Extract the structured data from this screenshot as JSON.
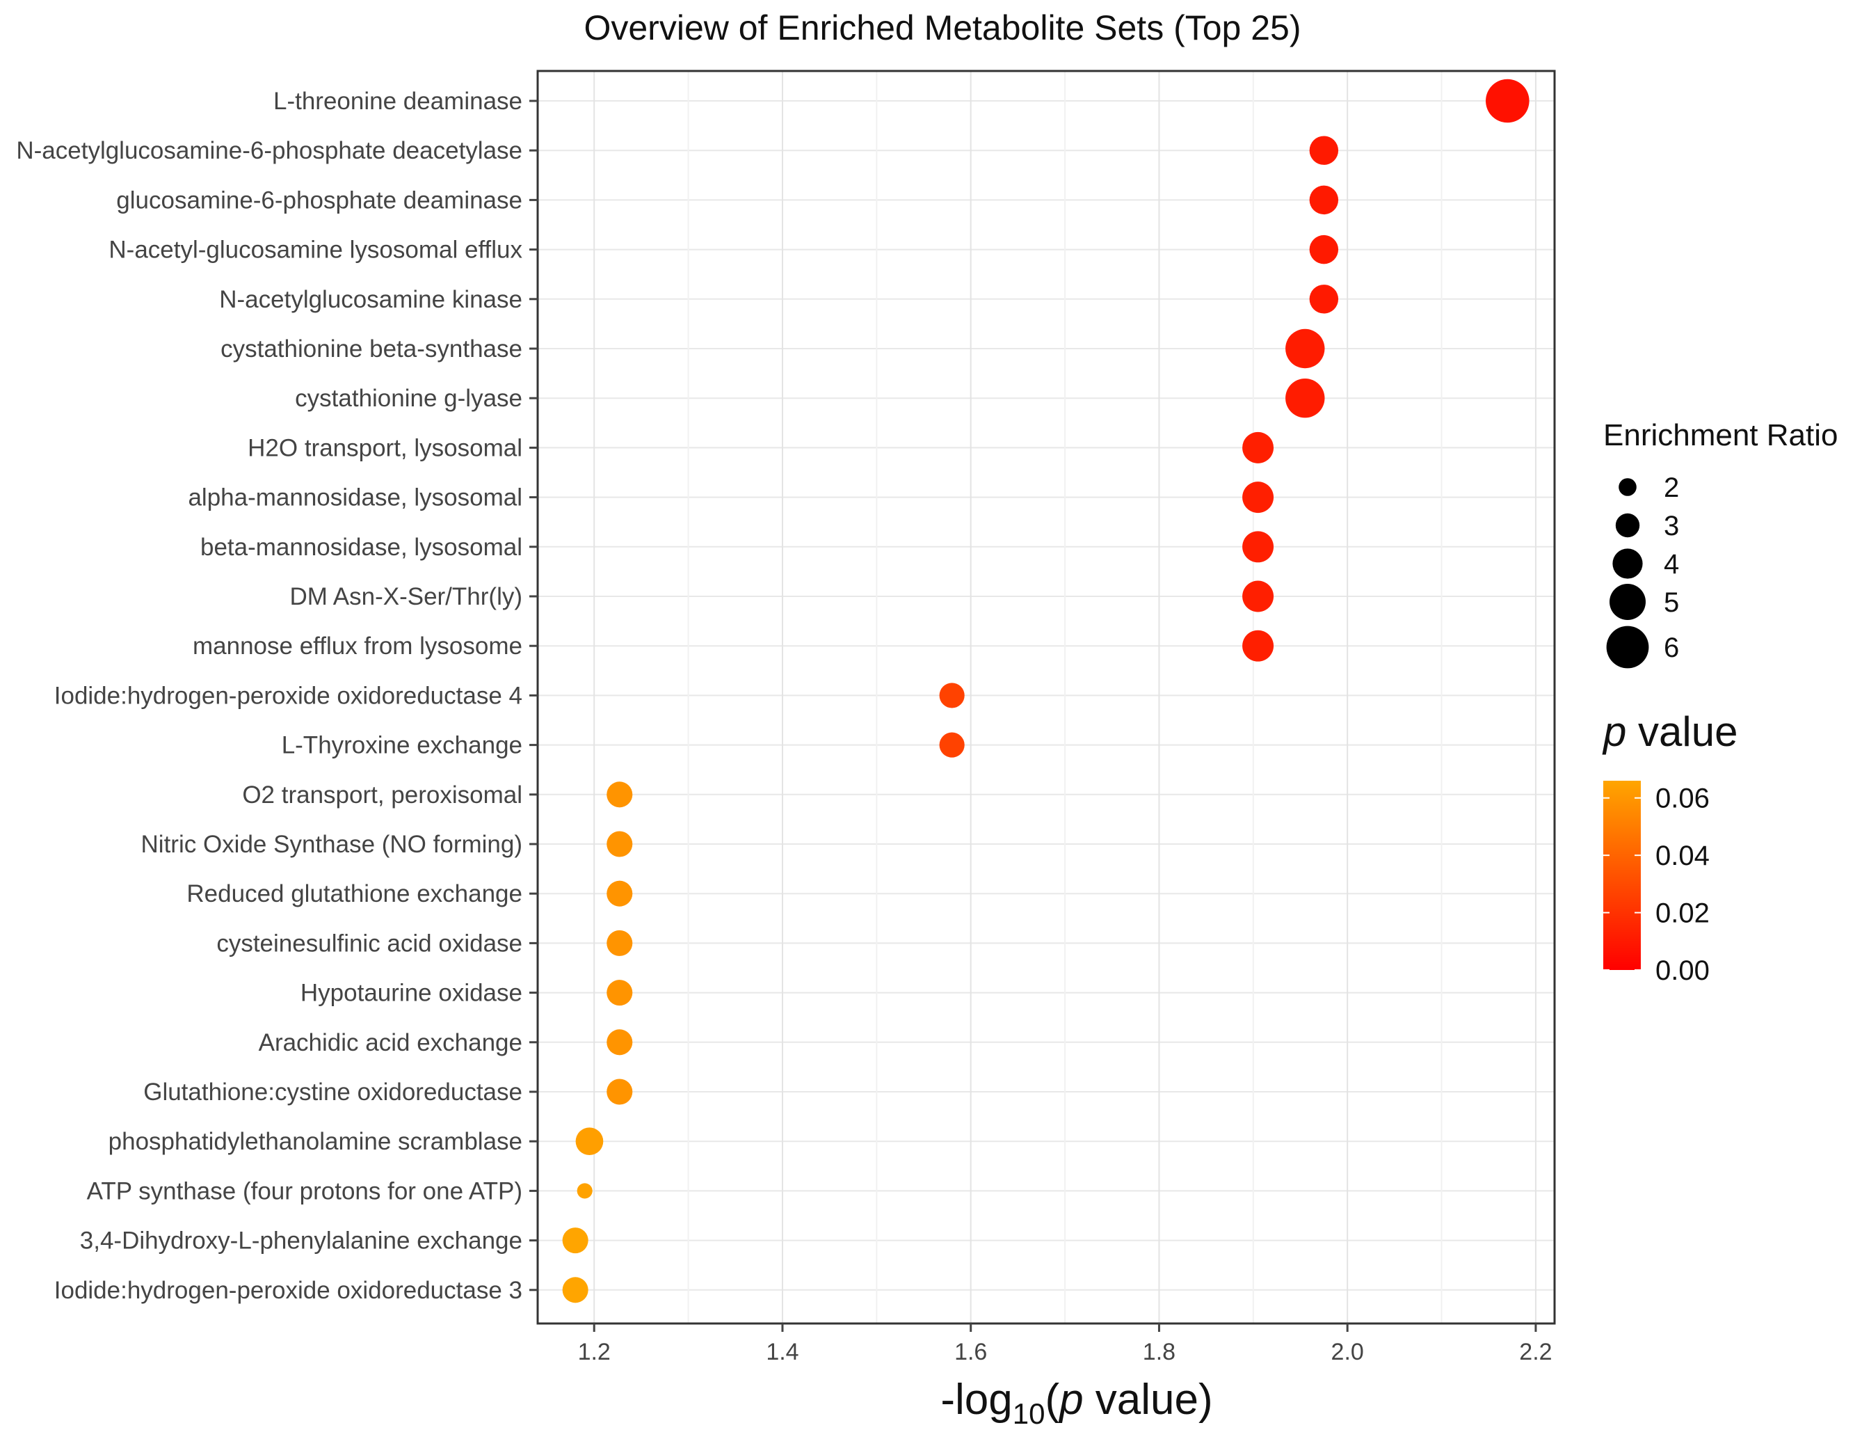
{
  "chart_data": {
    "type": "scatter",
    "title": "Overview of Enriched Metabolite Sets (Top 25)",
    "xlabel": "-log10(p value)",
    "xlabel_parts": {
      "prefix": "-log",
      "sub": "10",
      "open": "(",
      "italic": "p",
      "rest": " value)"
    },
    "xlim": [
      1.14,
      2.22
    ],
    "xticks": [
      1.2,
      1.4,
      1.6,
      1.8,
      2.0,
      2.2
    ],
    "xtick_labels": [
      "1.2",
      "1.4",
      "1.6",
      "1.8",
      "2.0",
      "2.2"
    ],
    "grid": true,
    "categories": [
      "L-threonine deaminase",
      "N-acetylglucosamine-6-phosphate deacetylase",
      "glucosamine-6-phosphate deaminase",
      "N-acetyl-glucosamine lysosomal efflux",
      "N-acetylglucosamine kinase",
      "cystathionine beta-synthase",
      "cystathionine g-lyase",
      "H2O transport, lysosomal",
      "alpha-mannosidase, lysosomal",
      "beta-mannosidase, lysosomal",
      "DM Asn-X-Ser/Thr(ly)",
      "mannose efflux from lysosome",
      "Iodide:hydrogen-peroxide oxidoreductase 4",
      "L-Thyroxine exchange",
      "O2 transport, peroxisomal",
      "Nitric Oxide Synthase (NO forming)",
      "Reduced glutathione exchange",
      "cysteinesulfinic acid oxidase",
      "Hypotaurine oxidase",
      "Arachidic acid exchange",
      "Glutathione:cystine oxidoreductase",
      "phosphatidylethanolamine scramblase",
      "ATP synthase (four protons for one ATP)",
      "3,4-Dihydroxy-L-phenylalanine exchange",
      "Iodide:hydrogen-peroxide oxidoreductase 3"
    ],
    "x": [
      2.17,
      1.975,
      1.975,
      1.975,
      1.975,
      1.955,
      1.955,
      1.905,
      1.905,
      1.905,
      1.905,
      1.905,
      1.58,
      1.58,
      1.227,
      1.227,
      1.227,
      1.227,
      1.227,
      1.227,
      1.227,
      1.195,
      1.19,
      1.18,
      1.18
    ],
    "enrichment_ratio": [
      6.2,
      3.8,
      3.8,
      3.8,
      3.8,
      5.5,
      5.5,
      4.2,
      4.2,
      4.2,
      4.2,
      4.2,
      3.2,
      3.2,
      3.3,
      3.3,
      3.3,
      3.3,
      3.3,
      3.3,
      3.3,
      3.6,
      1.6,
      3.3,
      3.3
    ],
    "p_value": [
      0.0068,
      0.0106,
      0.0106,
      0.0106,
      0.0106,
      0.0111,
      0.0111,
      0.0124,
      0.0124,
      0.0124,
      0.0124,
      0.0124,
      0.0263,
      0.0263,
      0.0593,
      0.0593,
      0.0593,
      0.0593,
      0.0593,
      0.0593,
      0.0593,
      0.0638,
      0.0646,
      0.0661,
      0.0661
    ],
    "size_legend": {
      "title": "Enrichment Ratio",
      "values": [
        2,
        3,
        4,
        5,
        6
      ],
      "labels": [
        "2",
        "3",
        "4",
        "5",
        "6"
      ]
    },
    "color_legend": {
      "title_italic": "p",
      "title_rest": " value",
      "range": [
        0.0,
        0.066
      ],
      "ticks": [
        0.06,
        0.04,
        0.02,
        0.0
      ],
      "tick_labels": [
        "0.06",
        "0.04",
        "0.02",
        "0.00"
      ],
      "low_color": "#ff0000",
      "high_color": "#ffa500"
    },
    "legend_placement": "right"
  }
}
